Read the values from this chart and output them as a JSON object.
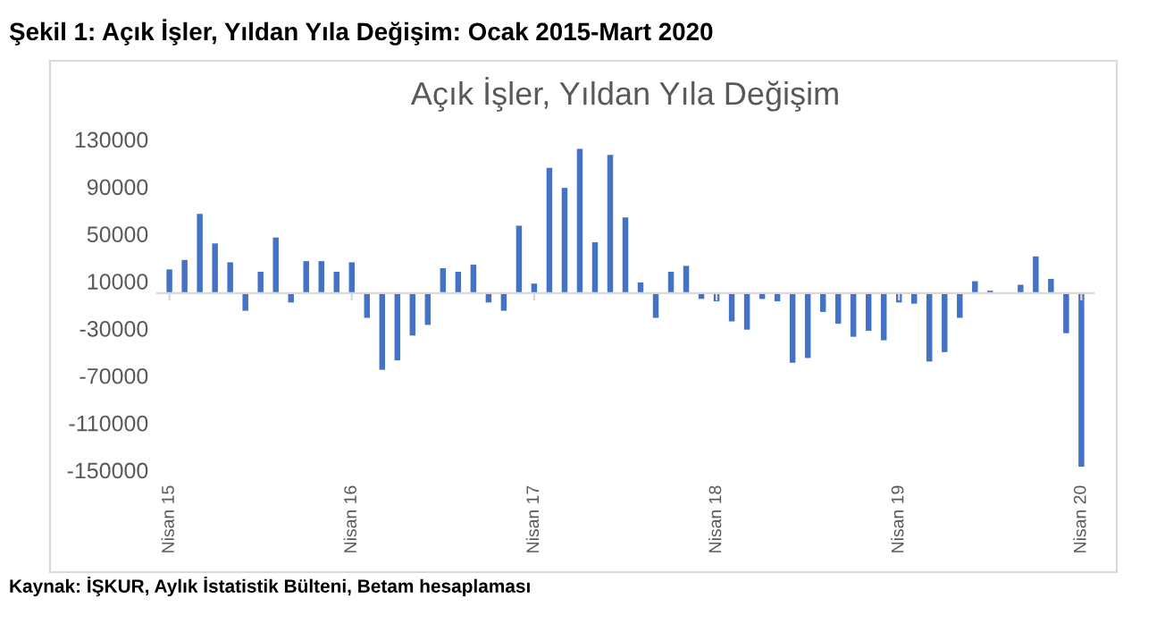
{
  "chart_data": {
    "type": "bar",
    "title": "Açık İşler, Yıldan Yıla Değişim",
    "subtitle": "Şekil 1: Açık İşler, Yıldan Yıla Değişim: Ocak 2015-Mart 2020",
    "annotations": [
      "Kaynak: İŞKUR, Aylık İstatistik Bülteni, Betam hesaplaması"
    ],
    "categories": [
      "Nisan 15",
      null,
      null,
      null,
      null,
      null,
      null,
      null,
      null,
      null,
      null,
      null,
      "Nisan 16",
      null,
      null,
      null,
      null,
      null,
      null,
      null,
      null,
      null,
      null,
      null,
      "Nisan 17",
      null,
      null,
      null,
      null,
      null,
      null,
      null,
      null,
      null,
      null,
      null,
      "Nisan 18",
      null,
      null,
      null,
      null,
      null,
      null,
      null,
      null,
      null,
      null,
      null,
      "Nisan 19",
      null,
      null,
      null,
      null,
      null,
      null,
      null,
      null,
      null,
      null,
      null,
      "Nisan 20"
    ],
    "values": [
      20000,
      28000,
      67000,
      42000,
      26000,
      -15000,
      18000,
      47000,
      -8000,
      27000,
      27000,
      18000,
      26000,
      -21000,
      -65000,
      -57000,
      -36000,
      -27000,
      21000,
      18000,
      24000,
      -8000,
      -15000,
      57000,
      8000,
      106000,
      89000,
      122000,
      43000,
      117000,
      64000,
      9000,
      -21000,
      18000,
      23000,
      -5000,
      -7000,
      -24000,
      -31000,
      -5000,
      -7000,
      -59000,
      -55000,
      -16000,
      -26000,
      -37000,
      -32000,
      -40000,
      -8000,
      -9000,
      -58000,
      -50000,
      -21000,
      10000,
      2000,
      0,
      7000,
      31000,
      12000,
      -34000,
      -147000
    ],
    "color": "#4472c4",
    "ylim": [
      -150000,
      130000
    ],
    "yticks": [
      -150000,
      -110000,
      -70000,
      -30000,
      10000,
      50000,
      90000,
      130000
    ],
    "grid": false,
    "legend": false
  }
}
